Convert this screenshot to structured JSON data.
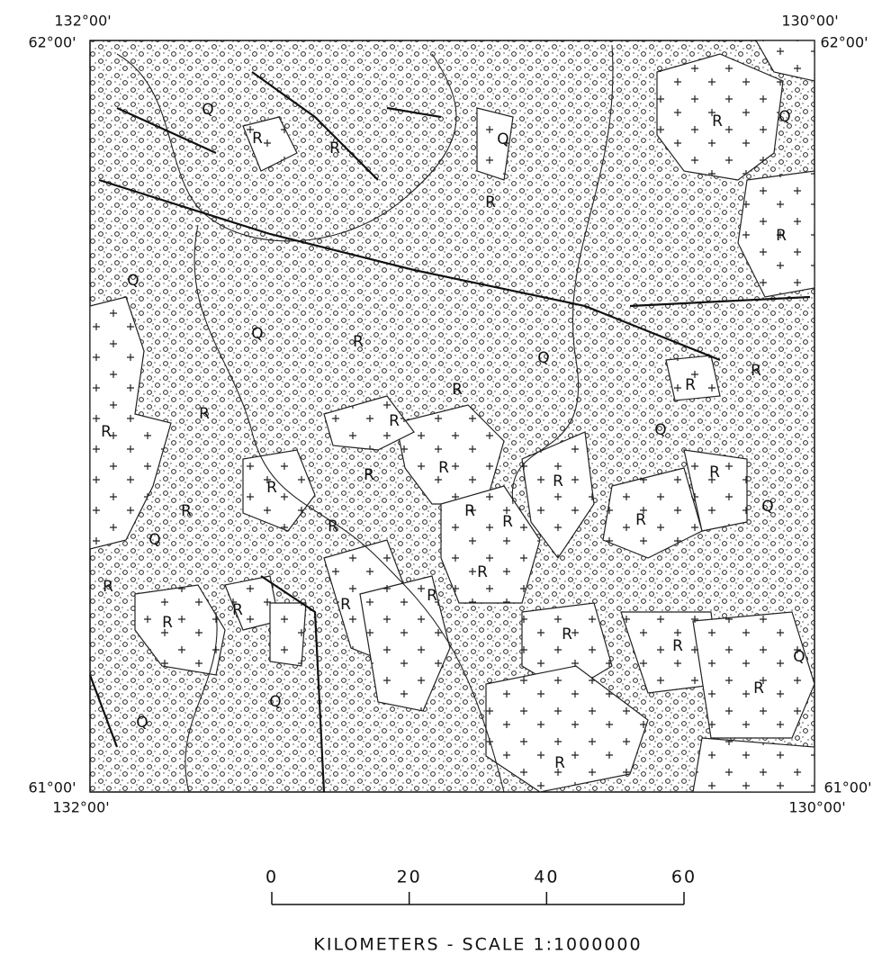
{
  "corners": {
    "top_left_lon": "132°00'",
    "top_left_lat": "62°00'",
    "top_right_lon": "130°00'",
    "top_right_lat": "62°00'",
    "bottom_left_lat": "61°00'",
    "bottom_left_lon": "132°00'",
    "bottom_right_lat": "61°00'",
    "bottom_right_lon": "130°00'"
  },
  "unit_labels": [
    "Q",
    "Q",
    "Q",
    "Q",
    "Q",
    "Q",
    "Q",
    "Q",
    "Q",
    "Q",
    "Q",
    "Q",
    "R",
    "R",
    "R",
    "R",
    "R",
    "R",
    "R",
    "R",
    "R",
    "R",
    "R",
    "R",
    "R",
    "R",
    "R",
    "R",
    "R",
    "R",
    "R",
    "R",
    "R",
    "R",
    "R",
    "R",
    "R",
    "R",
    "R",
    "R",
    "R",
    "R",
    "R",
    "R"
  ],
  "scale": {
    "ticks": [
      0,
      20,
      40,
      60
    ],
    "caption": "KILOMETERS - SCALE   1:1000000"
  }
}
